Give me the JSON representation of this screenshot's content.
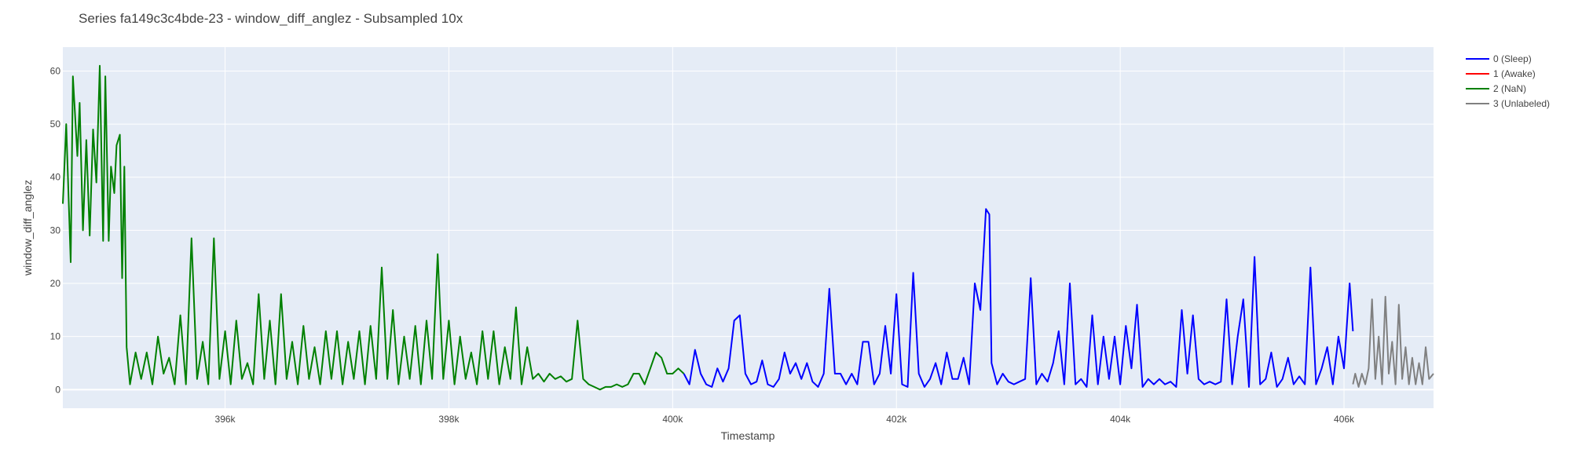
{
  "chart_data": {
    "type": "line",
    "title": "Series fa149c3c4bde-23 - window_diff_anglez - Subsampled 10x",
    "xlabel": "Timestamp",
    "ylabel": "window_diff_anglez",
    "xlim": [
      394550,
      406800
    ],
    "ylim": [
      -3.5,
      64.5
    ],
    "x_ticks": [
      396000,
      398000,
      400000,
      402000,
      404000,
      406000
    ],
    "x_tick_labels": [
      "396k",
      "398k",
      "400k",
      "402k",
      "404k",
      "406k"
    ],
    "y_ticks": [
      0,
      10,
      20,
      30,
      40,
      50,
      60
    ],
    "y_tick_labels": [
      "0",
      "10",
      "20",
      "30",
      "40",
      "50",
      "60"
    ],
    "grid": true,
    "legend_position": "top-right",
    "plot_background": "#e5ecf6",
    "series": [
      {
        "name": "0 (Sleep)",
        "color": "#0000ff",
        "points": [
          [
            400100,
            3
          ],
          [
            400150,
            1
          ],
          [
            400200,
            7.5
          ],
          [
            400250,
            3
          ],
          [
            400300,
            1
          ],
          [
            400350,
            0.5
          ],
          [
            400400,
            4
          ],
          [
            400450,
            1.5
          ],
          [
            400500,
            4
          ],
          [
            400550,
            13
          ],
          [
            400600,
            14
          ],
          [
            400650,
            3
          ],
          [
            400700,
            1
          ],
          [
            400750,
            1.5
          ],
          [
            400800,
            5.5
          ],
          [
            400850,
            1
          ],
          [
            400900,
            0.5
          ],
          [
            400950,
            2
          ],
          [
            401000,
            7
          ],
          [
            401050,
            3
          ],
          [
            401100,
            5
          ],
          [
            401150,
            2
          ],
          [
            401200,
            5
          ],
          [
            401250,
            1.5
          ],
          [
            401300,
            0.5
          ],
          [
            401350,
            3
          ],
          [
            401400,
            19
          ],
          [
            401450,
            3
          ],
          [
            401500,
            3
          ],
          [
            401550,
            1
          ],
          [
            401600,
            3
          ],
          [
            401650,
            1
          ],
          [
            401700,
            9
          ],
          [
            401750,
            9
          ],
          [
            401800,
            1
          ],
          [
            401850,
            3
          ],
          [
            401900,
            12
          ],
          [
            401950,
            3
          ],
          [
            402000,
            18
          ],
          [
            402050,
            1
          ],
          [
            402100,
            0.5
          ],
          [
            402150,
            22
          ],
          [
            402200,
            3
          ],
          [
            402250,
            0.5
          ],
          [
            402300,
            2
          ],
          [
            402350,
            5
          ],
          [
            402400,
            1
          ],
          [
            402450,
            7
          ],
          [
            402500,
            2
          ],
          [
            402550,
            2
          ],
          [
            402600,
            6
          ],
          [
            402650,
            1
          ],
          [
            402700,
            20
          ],
          [
            402750,
            15
          ],
          [
            402800,
            34
          ],
          [
            402830,
            33
          ],
          [
            402850,
            5
          ],
          [
            402900,
            1
          ],
          [
            402950,
            3
          ],
          [
            403000,
            1.5
          ],
          [
            403050,
            1
          ],
          [
            403100,
            1.5
          ],
          [
            403150,
            2
          ],
          [
            403200,
            21
          ],
          [
            403250,
            1
          ],
          [
            403300,
            3
          ],
          [
            403350,
            1.5
          ],
          [
            403400,
            5
          ],
          [
            403450,
            11
          ],
          [
            403500,
            1
          ],
          [
            403550,
            20
          ],
          [
            403600,
            1
          ],
          [
            403650,
            2
          ],
          [
            403700,
            0.5
          ],
          [
            403750,
            14
          ],
          [
            403800,
            1
          ],
          [
            403850,
            10
          ],
          [
            403900,
            2
          ],
          [
            403950,
            10
          ],
          [
            404000,
            1
          ],
          [
            404050,
            12
          ],
          [
            404100,
            4
          ],
          [
            404150,
            16
          ],
          [
            404200,
            0.5
          ],
          [
            404250,
            2
          ],
          [
            404300,
            1
          ],
          [
            404350,
            2
          ],
          [
            404400,
            1
          ],
          [
            404450,
            1.5
          ],
          [
            404500,
            0.5
          ],
          [
            404550,
            15
          ],
          [
            404600,
            3
          ],
          [
            404650,
            14
          ],
          [
            404700,
            2
          ],
          [
            404750,
            1
          ],
          [
            404800,
            1.5
          ],
          [
            404850,
            1
          ],
          [
            404900,
            1.5
          ],
          [
            404950,
            17
          ],
          [
            405000,
            1
          ],
          [
            405050,
            10
          ],
          [
            405100,
            17
          ],
          [
            405150,
            0.5
          ],
          [
            405200,
            25
          ],
          [
            405250,
            1
          ],
          [
            405300,
            2
          ],
          [
            405350,
            7
          ],
          [
            405400,
            0.5
          ],
          [
            405450,
            2
          ],
          [
            405500,
            6
          ],
          [
            405550,
            1
          ],
          [
            405600,
            2.5
          ],
          [
            405650,
            1
          ],
          [
            405700,
            23
          ],
          [
            405750,
            1
          ],
          [
            405800,
            4
          ],
          [
            405850,
            8
          ],
          [
            405900,
            1
          ],
          [
            405950,
            10
          ],
          [
            406000,
            4
          ],
          [
            406050,
            20
          ],
          [
            406080,
            11
          ]
        ]
      },
      {
        "name": "1 (Awake)",
        "color": "#ff0000",
        "points": []
      },
      {
        "name": "2 (NaN)",
        "color": "#008000",
        "points": [
          [
            394550,
            35
          ],
          [
            394580,
            50
          ],
          [
            394620,
            24
          ],
          [
            394640,
            59
          ],
          [
            394680,
            44
          ],
          [
            394700,
            54
          ],
          [
            394730,
            30
          ],
          [
            394760,
            47
          ],
          [
            394790,
            29
          ],
          [
            394820,
            49
          ],
          [
            394850,
            39
          ],
          [
            394880,
            61
          ],
          [
            394910,
            28
          ],
          [
            394930,
            59
          ],
          [
            394960,
            28
          ],
          [
            394980,
            42
          ],
          [
            395010,
            37
          ],
          [
            395030,
            46
          ],
          [
            395060,
            48
          ],
          [
            395080,
            21
          ],
          [
            395100,
            42
          ],
          [
            395120,
            8
          ],
          [
            395150,
            1
          ],
          [
            395200,
            7
          ],
          [
            395250,
            2
          ],
          [
            395300,
            7
          ],
          [
            395350,
            1
          ],
          [
            395400,
            10
          ],
          [
            395450,
            3
          ],
          [
            395500,
            6
          ],
          [
            395550,
            1
          ],
          [
            395600,
            14
          ],
          [
            395650,
            1
          ],
          [
            395700,
            28.5
          ],
          [
            395750,
            2
          ],
          [
            395800,
            9
          ],
          [
            395850,
            1
          ],
          [
            395900,
            28.5
          ],
          [
            395950,
            2
          ],
          [
            396000,
            11
          ],
          [
            396050,
            1
          ],
          [
            396100,
            13
          ],
          [
            396150,
            2
          ],
          [
            396200,
            5
          ],
          [
            396250,
            1
          ],
          [
            396300,
            18
          ],
          [
            396350,
            2
          ],
          [
            396400,
            13
          ],
          [
            396450,
            1
          ],
          [
            396500,
            18
          ],
          [
            396550,
            2
          ],
          [
            396600,
            9
          ],
          [
            396650,
            1
          ],
          [
            396700,
            12
          ],
          [
            396750,
            2
          ],
          [
            396800,
            8
          ],
          [
            396850,
            1
          ],
          [
            396900,
            11
          ],
          [
            396950,
            2
          ],
          [
            397000,
            11
          ],
          [
            397050,
            1
          ],
          [
            397100,
            9
          ],
          [
            397150,
            2
          ],
          [
            397200,
            11
          ],
          [
            397250,
            1
          ],
          [
            397300,
            12
          ],
          [
            397350,
            2
          ],
          [
            397400,
            23
          ],
          [
            397450,
            2
          ],
          [
            397500,
            15
          ],
          [
            397550,
            1
          ],
          [
            397600,
            10
          ],
          [
            397650,
            2
          ],
          [
            397700,
            12
          ],
          [
            397750,
            1
          ],
          [
            397800,
            13
          ],
          [
            397850,
            2
          ],
          [
            397900,
            25.5
          ],
          [
            397950,
            2
          ],
          [
            398000,
            13
          ],
          [
            398050,
            1
          ],
          [
            398100,
            10
          ],
          [
            398150,
            2
          ],
          [
            398200,
            7
          ],
          [
            398250,
            1
          ],
          [
            398300,
            11
          ],
          [
            398350,
            2
          ],
          [
            398400,
            11
          ],
          [
            398450,
            1
          ],
          [
            398500,
            8
          ],
          [
            398550,
            2
          ],
          [
            398600,
            15.5
          ],
          [
            398650,
            1
          ],
          [
            398700,
            8
          ],
          [
            398750,
            2
          ],
          [
            398800,
            3
          ],
          [
            398850,
            1.5
          ],
          [
            398900,
            3
          ],
          [
            398950,
            2
          ],
          [
            399000,
            2.5
          ],
          [
            399050,
            1.5
          ],
          [
            399100,
            2
          ],
          [
            399150,
            13
          ],
          [
            399200,
            2
          ],
          [
            399250,
            1
          ],
          [
            399300,
            0.5
          ],
          [
            399350,
            0
          ],
          [
            399400,
            0.5
          ],
          [
            399450,
            0.5
          ],
          [
            399500,
            1
          ],
          [
            399550,
            0.5
          ],
          [
            399600,
            1
          ],
          [
            399650,
            3
          ],
          [
            399700,
            3
          ],
          [
            399750,
            1
          ],
          [
            399800,
            4
          ],
          [
            399850,
            7
          ],
          [
            399900,
            6
          ],
          [
            399950,
            3
          ],
          [
            400000,
            3
          ],
          [
            400050,
            4
          ],
          [
            400100,
            3
          ]
        ]
      },
      {
        "name": "3 (Unlabeled)",
        "color": "#808080",
        "points": [
          [
            406080,
            1
          ],
          [
            406100,
            3
          ],
          [
            406130,
            0.5
          ],
          [
            406160,
            3
          ],
          [
            406190,
            1
          ],
          [
            406220,
            4
          ],
          [
            406250,
            17
          ],
          [
            406280,
            2
          ],
          [
            406310,
            10
          ],
          [
            406340,
            1
          ],
          [
            406370,
            17.5
          ],
          [
            406400,
            3
          ],
          [
            406430,
            9
          ],
          [
            406460,
            1
          ],
          [
            406490,
            16
          ],
          [
            406520,
            2
          ],
          [
            406550,
            8
          ],
          [
            406580,
            1
          ],
          [
            406610,
            6
          ],
          [
            406640,
            1
          ],
          [
            406670,
            5
          ],
          [
            406700,
            1
          ],
          [
            406730,
            8
          ],
          [
            406760,
            2
          ],
          [
            406800,
            3
          ]
        ]
      }
    ]
  }
}
